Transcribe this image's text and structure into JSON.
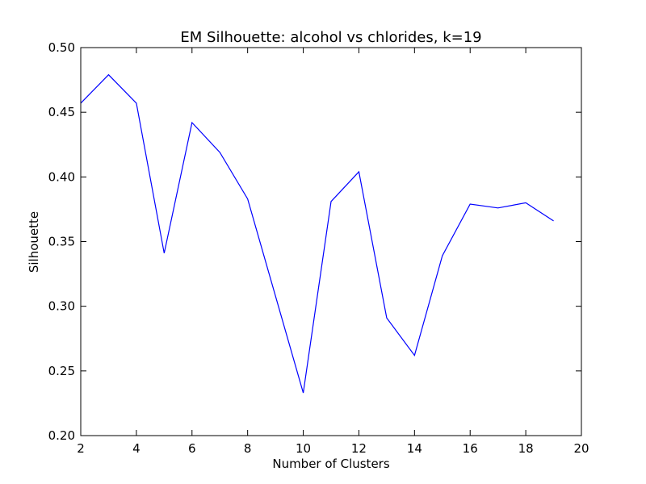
{
  "chart_data": {
    "type": "line",
    "title": "EM Silhouette: alcohol vs chlorides, k=19",
    "xlabel": "Number of Clusters",
    "ylabel": "Silhouette",
    "xlim": [
      2,
      20
    ],
    "ylim": [
      0.2,
      0.5
    ],
    "xticks": [
      2,
      4,
      6,
      8,
      10,
      12,
      14,
      16,
      18,
      20
    ],
    "xtick_labels": [
      "2",
      "4",
      "6",
      "8",
      "10",
      "12",
      "14",
      "16",
      "18",
      "20"
    ],
    "yticks": [
      0.2,
      0.25,
      0.3,
      0.35,
      0.4,
      0.45,
      0.5
    ],
    "ytick_labels": [
      "0.20",
      "0.25",
      "0.30",
      "0.35",
      "0.40",
      "0.45",
      "0.50"
    ],
    "grid": false,
    "legend": "none",
    "series": [
      {
        "color": "#0000ff",
        "x": [
          2,
          3,
          4,
          5,
          6,
          7,
          8,
          9,
          10,
          11,
          12,
          13,
          14,
          15,
          16,
          17,
          18,
          19
        ],
        "y": [
          0.457,
          0.479,
          0.457,
          0.341,
          0.442,
          0.419,
          0.383,
          0.308,
          0.233,
          0.381,
          0.404,
          0.291,
          0.262,
          0.339,
          0.379,
          0.376,
          0.38,
          0.366
        ]
      }
    ]
  }
}
